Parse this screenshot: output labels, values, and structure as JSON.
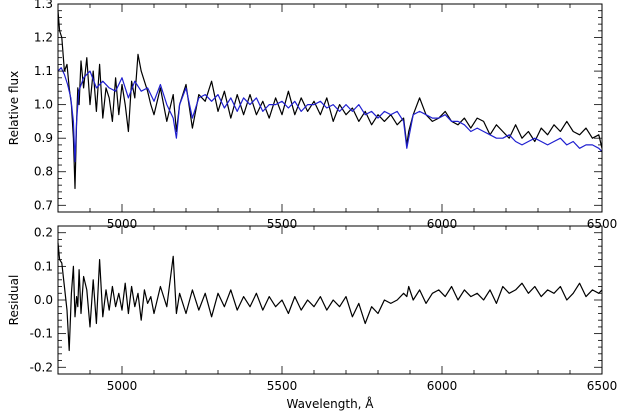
{
  "chart_data": [
    {
      "type": "line",
      "panel": "spectrum",
      "xlabel": "",
      "ylabel": "Relative flux",
      "xlim": [
        4800,
        6500
      ],
      "ylim": [
        0.68,
        1.3
      ],
      "xticks": [
        5000,
        5500,
        6000,
        6500
      ],
      "yticks": [
        0.7,
        0.8,
        0.9,
        1.0,
        1.1,
        1.2,
        1.3
      ],
      "yticklabels": [
        "0.7",
        "0.8",
        "0.9",
        "1.0",
        "1.1",
        "1.2",
        "1.3"
      ],
      "series": [
        {
          "color": "#000000",
          "x": [
            4800,
            4805,
            4812,
            4820,
            4828,
            4835,
            4842,
            4848,
            4853,
            4858,
            4862,
            4866,
            4872,
            4880,
            4890,
            4900,
            4910,
            4920,
            4930,
            4940,
            4950,
            4960,
            4970,
            4980,
            4990,
            5000,
            5010,
            5020,
            5030,
            5040,
            5050,
            5060,
            5070,
            5080,
            5090,
            5100,
            5120,
            5140,
            5160,
            5170,
            5180,
            5200,
            5220,
            5240,
            5260,
            5280,
            5300,
            5320,
            5340,
            5360,
            5380,
            5400,
            5420,
            5440,
            5460,
            5480,
            5500,
            5520,
            5540,
            5560,
            5580,
            5600,
            5620,
            5640,
            5660,
            5680,
            5700,
            5720,
            5740,
            5760,
            5780,
            5800,
            5820,
            5840,
            5860,
            5880,
            5890,
            5896,
            5910,
            5930,
            5950,
            5970,
            5990,
            6010,
            6030,
            6050,
            6070,
            6090,
            6110,
            6130,
            6150,
            6170,
            6190,
            6210,
            6230,
            6250,
            6270,
            6290,
            6310,
            6330,
            6350,
            6370,
            6390,
            6410,
            6430,
            6450,
            6470,
            6490,
            6500
          ],
          "y": [
            1.28,
            1.22,
            1.2,
            1.1,
            1.12,
            1.05,
            1.0,
            0.9,
            0.75,
            0.95,
            1.05,
            1.0,
            1.13,
            1.05,
            1.14,
            1.0,
            1.1,
            0.98,
            1.12,
            0.96,
            1.05,
            1.02,
            0.95,
            1.08,
            0.97,
            1.06,
            1.0,
            0.92,
            1.07,
            1.02,
            1.15,
            1.1,
            1.07,
            1.04,
            1.0,
            0.97,
            1.05,
            0.95,
            1.03,
            0.92,
            1.0,
            1.06,
            0.93,
            1.03,
            1.01,
            1.07,
            0.98,
            1.04,
            0.96,
            1.03,
            0.97,
            1.03,
            0.97,
            1.01,
            0.96,
            1.02,
            0.97,
            1.04,
            0.97,
            1.02,
            0.98,
            1.01,
            0.97,
            1.02,
            0.95,
            1.0,
            0.97,
            0.99,
            0.95,
            0.98,
            0.94,
            0.97,
            0.95,
            0.97,
            0.94,
            0.96,
            0.88,
            0.92,
            0.97,
            1.02,
            0.97,
            0.95,
            0.96,
            0.98,
            0.95,
            0.94,
            0.96,
            0.93,
            0.96,
            0.95,
            0.91,
            0.94,
            0.92,
            0.9,
            0.94,
            0.9,
            0.92,
            0.89,
            0.93,
            0.91,
            0.94,
            0.92,
            0.95,
            0.92,
            0.91,
            0.93,
            0.9,
            0.91,
            0.87
          ]
        },
        {
          "color": "#1f1fd0",
          "x": [
            4800,
            4810,
            4820,
            4830,
            4840,
            4848,
            4853,
            4858,
            4865,
            4880,
            4900,
            4920,
            4940,
            4960,
            4980,
            5000,
            5020,
            5040,
            5060,
            5080,
            5100,
            5120,
            5140,
            5160,
            5170,
            5180,
            5200,
            5220,
            5240,
            5260,
            5280,
            5300,
            5320,
            5340,
            5360,
            5380,
            5400,
            5420,
            5440,
            5460,
            5480,
            5500,
            5520,
            5540,
            5560,
            5580,
            5600,
            5620,
            5640,
            5660,
            5680,
            5700,
            5720,
            5740,
            5760,
            5780,
            5800,
            5820,
            5840,
            5860,
            5880,
            5890,
            5896,
            5910,
            5930,
            5950,
            5970,
            5990,
            6010,
            6030,
            6050,
            6070,
            6090,
            6110,
            6130,
            6150,
            6170,
            6190,
            6210,
            6230,
            6250,
            6270,
            6290,
            6310,
            6330,
            6350,
            6370,
            6390,
            6410,
            6430,
            6450,
            6470,
            6490,
            6500
          ],
          "y": [
            1.1,
            1.11,
            1.09,
            1.06,
            1.02,
            0.95,
            0.83,
            0.95,
            1.04,
            1.08,
            1.1,
            1.05,
            1.07,
            1.05,
            1.04,
            1.08,
            1.02,
            1.07,
            1.04,
            1.05,
            1.01,
            1.06,
            1.0,
            0.96,
            0.9,
            1.0,
            1.05,
            0.96,
            1.02,
            1.03,
            1.01,
            1.03,
            0.99,
            1.02,
            0.98,
            1.02,
            1.0,
            1.02,
            0.98,
            1.0,
            1.0,
            1.01,
            0.99,
            1.01,
            0.98,
            1.0,
            1.0,
            1.01,
            0.99,
            1.0,
            0.98,
            1.0,
            0.98,
            1.0,
            0.97,
            0.98,
            0.96,
            0.98,
            0.97,
            0.98,
            0.95,
            0.87,
            0.9,
            0.97,
            0.98,
            0.97,
            0.96,
            0.96,
            0.97,
            0.95,
            0.95,
            0.94,
            0.92,
            0.93,
            0.92,
            0.91,
            0.9,
            0.9,
            0.91,
            0.89,
            0.88,
            0.89,
            0.9,
            0.89,
            0.88,
            0.89,
            0.9,
            0.88,
            0.89,
            0.87,
            0.88,
            0.88,
            0.87,
            0.86
          ]
        }
      ]
    },
    {
      "type": "line",
      "panel": "residual",
      "xlabel": "Wavelength, Å",
      "ylabel": "Residual",
      "xlim": [
        4800,
        6500
      ],
      "ylim": [
        -0.22,
        0.22
      ],
      "xticks": [
        5000,
        5500,
        6000,
        6500
      ],
      "yticks": [
        -0.2,
        -0.1,
        0.0,
        0.1,
        0.2
      ],
      "yticklabels": [
        "-0.2",
        "-0.1",
        "0.0",
        "0.1",
        "0.2"
      ],
      "series": [
        {
          "color": "#000000",
          "x": [
            4800,
            4805,
            4812,
            4820,
            4828,
            4835,
            4842,
            4848,
            4853,
            4858,
            4862,
            4866,
            4872,
            4880,
            4890,
            4900,
            4910,
            4920,
            4930,
            4940,
            4950,
            4960,
            4970,
            4980,
            4990,
            5000,
            5010,
            5020,
            5030,
            5040,
            5050,
            5060,
            5070,
            5080,
            5090,
            5100,
            5120,
            5140,
            5160,
            5170,
            5180,
            5200,
            5220,
            5240,
            5260,
            5280,
            5300,
            5320,
            5340,
            5360,
            5380,
            5400,
            5420,
            5440,
            5460,
            5480,
            5500,
            5520,
            5540,
            5560,
            5580,
            5600,
            5620,
            5640,
            5660,
            5680,
            5700,
            5720,
            5740,
            5760,
            5780,
            5800,
            5820,
            5840,
            5860,
            5880,
            5890,
            5896,
            5910,
            5930,
            5950,
            5970,
            5990,
            6010,
            6030,
            6050,
            6070,
            6090,
            6110,
            6130,
            6150,
            6170,
            6190,
            6210,
            6230,
            6250,
            6270,
            6290,
            6310,
            6330,
            6350,
            6370,
            6390,
            6410,
            6430,
            6450,
            6470,
            6490,
            6500
          ],
          "y": [
            0.17,
            0.12,
            0.11,
            0.04,
            -0.03,
            -0.15,
            0.02,
            0.1,
            -0.05,
            0.01,
            -0.02,
            0.09,
            -0.04,
            0.07,
            0.03,
            -0.08,
            0.06,
            -0.07,
            0.12,
            -0.05,
            0.03,
            -0.03,
            0.04,
            -0.02,
            0.02,
            -0.03,
            0.05,
            -0.04,
            0.04,
            -0.02,
            0.02,
            -0.06,
            0.03,
            -0.01,
            0.01,
            -0.04,
            0.04,
            -0.02,
            0.13,
            -0.04,
            0.02,
            -0.04,
            0.03,
            -0.03,
            0.02,
            -0.05,
            0.02,
            -0.02,
            0.03,
            -0.03,
            0.01,
            -0.02,
            0.02,
            -0.03,
            0.01,
            -0.02,
            0.0,
            -0.04,
            0.01,
            -0.03,
            0.0,
            -0.02,
            0.01,
            -0.03,
            0.0,
            -0.02,
            0.01,
            -0.05,
            -0.01,
            -0.07,
            -0.02,
            -0.04,
            0.0,
            -0.01,
            0.0,
            0.02,
            0.01,
            0.04,
            0.0,
            0.03,
            -0.01,
            0.02,
            0.03,
            0.01,
            0.04,
            0.0,
            0.03,
            0.01,
            0.02,
            0.0,
            0.03,
            -0.01,
            0.04,
            0.02,
            0.03,
            0.05,
            0.02,
            0.04,
            0.01,
            0.03,
            0.02,
            0.04,
            0.0,
            0.02,
            0.05,
            0.01,
            0.03,
            0.02,
            0.03
          ]
        }
      ]
    }
  ]
}
